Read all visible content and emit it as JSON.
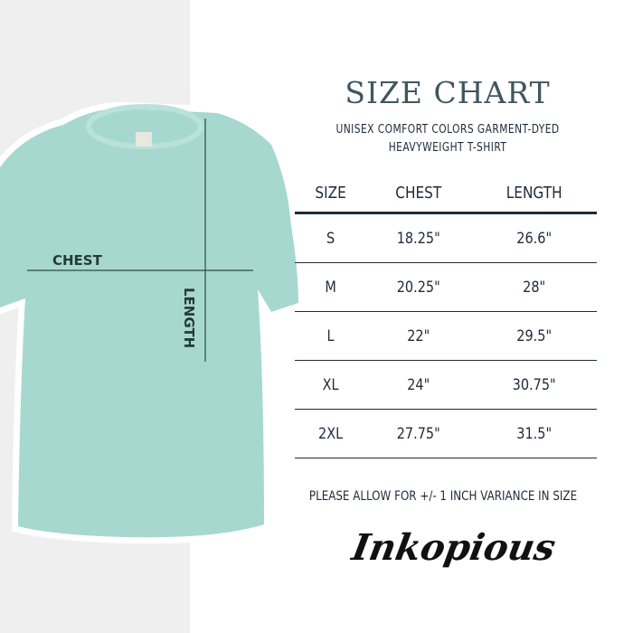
{
  "title": "SIZE CHART",
  "subtitle_line1": "UNISEX COMFORT COLORS GARMENT-DYED",
  "subtitle_line2": "HEAVYWEIGHT T-SHIRT",
  "headers": [
    "SIZE",
    "CHEST",
    "LENGTH"
  ],
  "rows": [
    [
      "S",
      "18.25\"",
      "26.6\""
    ],
    [
      "M",
      "20.25\"",
      "28\""
    ],
    [
      "L",
      "22\"",
      "29.5\""
    ],
    [
      "XL",
      "24\"",
      "30.75\""
    ],
    [
      "2XL",
      "27.75\"",
      "31.5\""
    ]
  ],
  "note": "PLEASE ALLOW FOR +/- 1 INCH VARIANCE IN SIZE",
  "brand": "Inkopious",
  "shirt_labels": {
    "chest": "CHEST",
    "length": "LENGTH"
  },
  "colors": {
    "shirt": "#a7d8cf",
    "text": "#1e2b3a",
    "title": "#3f5660"
  }
}
